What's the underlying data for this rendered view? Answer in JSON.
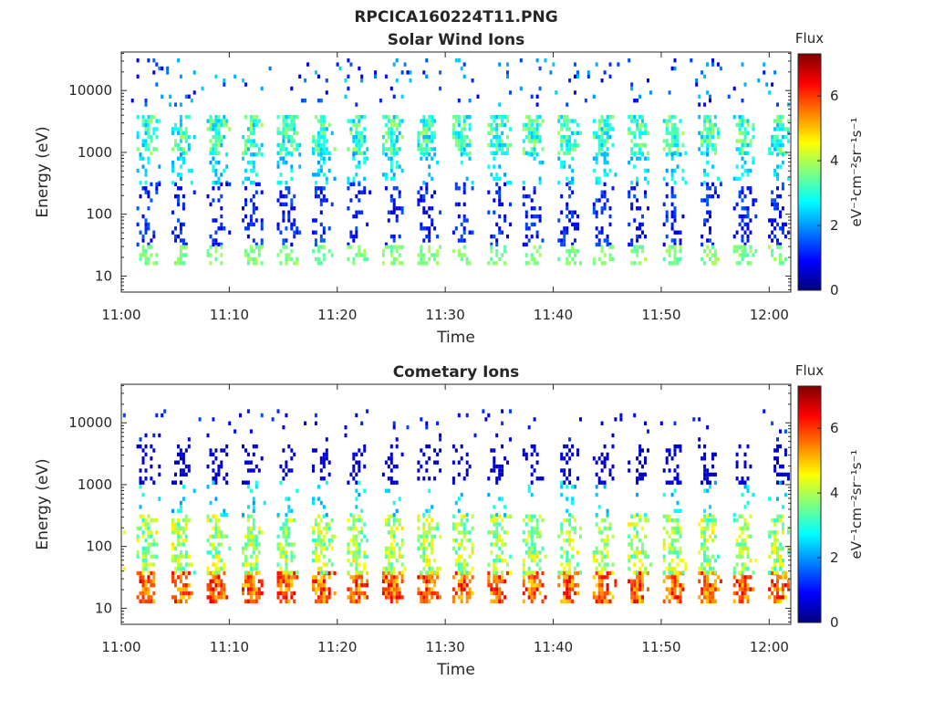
{
  "figure_title": "RPCICA160224T11.PNG",
  "colormap": [
    "#00007f",
    "#0000ff",
    "#007fff",
    "#00ffff",
    "#7fff7f",
    "#ffff00",
    "#ff7f00",
    "#ff0000",
    "#7f0000"
  ],
  "chart_data": [
    {
      "type": "heatmap",
      "title": "Solar Wind Ions",
      "xlabel": "Time",
      "ylabel": "Energy (eV)",
      "x_range": [
        "11:00",
        "12:02"
      ],
      "x_ticks": [
        "11:00",
        "11:10",
        "11:20",
        "11:30",
        "11:40",
        "11:50",
        "12:00"
      ],
      "y_scale": "log",
      "ylim": [
        5.5,
        42000
      ],
      "y_ticks": [
        {
          "value": 10,
          "label": "10"
        },
        {
          "value": 100,
          "label": "100"
        },
        {
          "value": 1000,
          "label": "1000"
        },
        {
          "value": 10000,
          "label": "10000"
        }
      ],
      "colorbar": {
        "title": "Flux",
        "label": "eV-1cm-2sr-1s-1",
        "range": [
          0,
          7.3
        ],
        "ticks": [
          "0",
          "2",
          "4",
          "6"
        ]
      },
      "sweep_period_min": 3.25,
      "pattern": "Each energy sweep shows a light blue to green band at about 1000-3000 eV, scattered blue points at 30-300 eV, and a faint green band near 20 eV; sparse points up to 30000 eV.",
      "bands": [
        {
          "energy_eV": [
            900,
            3500
          ],
          "flux": [
            2.2,
            4.0
          ],
          "density": 0.85
        },
        {
          "energy_eV": [
            300,
            900
          ],
          "flux": [
            2.0,
            3.0
          ],
          "density": 0.35
        },
        {
          "energy_eV": [
            30,
            300
          ],
          "flux": [
            0.6,
            1.6
          ],
          "density": 0.35
        },
        {
          "energy_eV": [
            15,
            28
          ],
          "flux": [
            3.3,
            4.0
          ],
          "density": 0.6
        },
        {
          "energy_eV": [
            5500,
            30000
          ],
          "flux": [
            0.6,
            2.5
          ],
          "density": 0.05
        }
      ]
    },
    {
      "type": "heatmap",
      "title": "Cometary Ions",
      "xlabel": "Time",
      "ylabel": "Energy (eV)",
      "x_range": [
        "11:00",
        "12:02"
      ],
      "x_ticks": [
        "11:00",
        "11:10",
        "11:20",
        "11:30",
        "11:40",
        "11:50",
        "12:00"
      ],
      "y_scale": "log",
      "ylim": [
        5.5,
        42000
      ],
      "y_ticks": [
        {
          "value": 10,
          "label": "10"
        },
        {
          "value": 100,
          "label": "100"
        },
        {
          "value": 1000,
          "label": "1000"
        },
        {
          "value": 10000,
          "label": "10000"
        }
      ],
      "colorbar": {
        "title": "Flux",
        "label": "eV-1cm-2sr-1s-1",
        "range": [
          0,
          7.3
        ],
        "ticks": [
          "0",
          "2",
          "4",
          "6"
        ]
      },
      "sweep_period_min": 3.25,
      "pattern": "Each sweep peaks in orange-red at about 15-30 eV, with a yellow-green streak from about 40 to 300 eV, scattered cyan up to 1000 eV and dark blue points at 1000-4000 eV.",
      "bands": [
        {
          "energy_eV": [
            12,
            35
          ],
          "flux": [
            4.8,
            6.6
          ],
          "density": 0.95
        },
        {
          "energy_eV": [
            35,
            300
          ],
          "flux": [
            3.0,
            4.8
          ],
          "density": 0.7
        },
        {
          "energy_eV": [
            300,
            1000
          ],
          "flux": [
            2.0,
            3.0
          ],
          "density": 0.15
        },
        {
          "energy_eV": [
            1000,
            4000
          ],
          "flux": [
            0.3,
            0.8
          ],
          "density": 0.4
        },
        {
          "energy_eV": [
            5000,
            15000
          ],
          "flux": [
            0.5,
            1.5
          ],
          "density": 0.03
        }
      ]
    }
  ]
}
